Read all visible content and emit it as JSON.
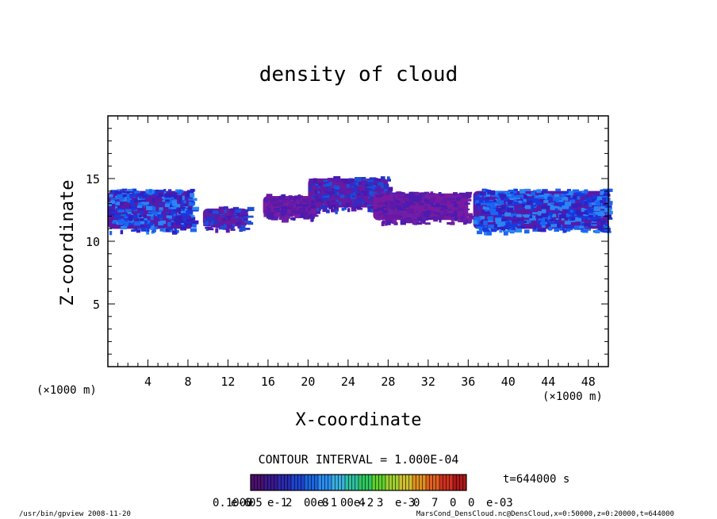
{
  "chart_data": {
    "type": "heatmap",
    "title": "density of cloud",
    "xlabel": "X-coordinate",
    "ylabel": "Z-coordinate",
    "x_unit_left": "(×1000 m)",
    "x_unit_right": "(×1000 m)",
    "xlim": [
      0,
      50
    ],
    "ylim": [
      0,
      20
    ],
    "x_ticks": [
      4,
      8,
      12,
      16,
      20,
      24,
      28,
      32,
      36,
      40,
      44,
      48
    ],
    "y_ticks": [
      5,
      10,
      15
    ],
    "contour_interval": "CONTOUR INTERVAL = 1.000E-04",
    "time_label": "t=644000 s",
    "colorbar_labels": [
      "0.1000",
      "e-6",
      "05",
      "e-1",
      "2",
      "00e-1",
      "8",
      "00e-2",
      "4",
      "3",
      "e-3",
      "0",
      "7",
      "0",
      "0",
      "e-03"
    ],
    "colorbar_colors": [
      "#4b1070",
      "#3a1890",
      "#2a2ab0",
      "#1e44d0",
      "#1a66e0",
      "#2a8ef0",
      "#3ab0e0",
      "#30c0a0",
      "#30c860",
      "#60d030",
      "#a0d030",
      "#d0c030",
      "#e09020",
      "#e06020",
      "#d03020",
      "#b01818"
    ],
    "cloud_regions": [
      {
        "x": [
          0,
          8.5
        ],
        "z": [
          10.8,
          14.2
        ],
        "level": "high"
      },
      {
        "x": [
          9.5,
          14
        ],
        "z": [
          11,
          12.8
        ],
        "level": "mid"
      },
      {
        "x": [
          15.5,
          21
        ],
        "z": [
          11.8,
          13.8
        ],
        "level": "low"
      },
      {
        "x": [
          20,
          28
        ],
        "z": [
          12.5,
          15.2
        ],
        "level": "mid"
      },
      {
        "x": [
          26.5,
          36
        ],
        "z": [
          11.5,
          14
        ],
        "level": "low"
      },
      {
        "x": [
          36.5,
          50
        ],
        "z": [
          10.8,
          14.2
        ],
        "level": "high"
      }
    ]
  },
  "footer": {
    "left": "/usr/bin/gpview   2008-11-20",
    "right": "MarsCond_DensCloud.nc@DensCloud,x=0:50000,z=0:20000,t=644000"
  }
}
